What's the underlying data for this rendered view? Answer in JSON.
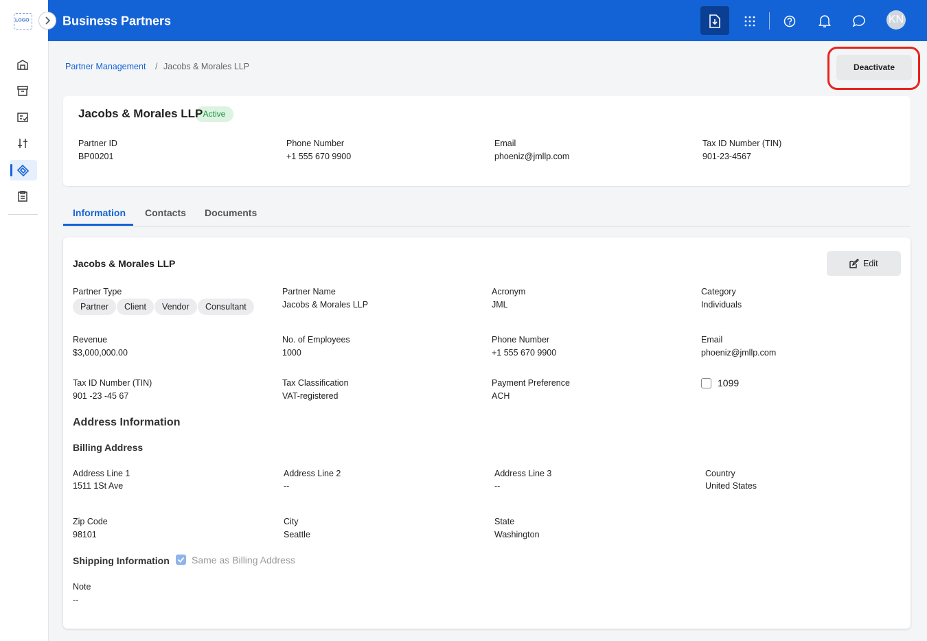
{
  "header": {
    "logo": "LOGO",
    "title": "Business Partners",
    "avatar": "KN"
  },
  "breadcrumb": {
    "parent": "Partner Management",
    "current": "Jacobs & Morales LLP"
  },
  "actions": {
    "deactivate": "Deactivate"
  },
  "summary": {
    "name": "Jacobs & Morales LLP",
    "status": "Active",
    "fields": [
      {
        "label": "Partner ID",
        "value": "BP00201"
      },
      {
        "label": "Phone Number",
        "value": "+1 555 670 9900"
      },
      {
        "label": "Email",
        "value": "phoeniz@jmllp.com"
      },
      {
        "label": "Tax ID Number (TIN)",
        "value": "901-23-4567"
      }
    ]
  },
  "tabs": [
    "Information",
    "Contacts",
    "Documents"
  ],
  "details": {
    "title": "Jacobs & Morales LLP",
    "edit": "Edit",
    "partner_type": {
      "label": "Partner Type",
      "chips": [
        "Partner",
        "Client",
        "Vendor",
        "Consultant"
      ]
    },
    "fields": [
      {
        "label": "Partner Name",
        "value": "Jacobs & Morales LLP"
      },
      {
        "label": "Acronym",
        "value": "JML"
      },
      {
        "label": "Category",
        "value": "Individuals"
      },
      {
        "label": "Revenue",
        "value": "$3,000,000.00"
      },
      {
        "label": "No. of Employees",
        "value": "1000"
      },
      {
        "label": "Phone Number",
        "value": "+1 555 670 9900"
      },
      {
        "label": "Email",
        "value": "phoeniz@jmllp.com"
      },
      {
        "label": "Tax ID Number (TIN)",
        "value": "901 -23 -45 67"
      },
      {
        "label": "Tax Classification",
        "value": "VAT-registered"
      },
      {
        "label": "Payment Preference",
        "value": "ACH"
      }
    ],
    "checkbox": "1099",
    "address_title": "Address Information",
    "billing_title": "Billing Address",
    "billing_fields": [
      {
        "label": "Address Line 1",
        "value": "1511 1St Ave"
      },
      {
        "label": "Address Line 2",
        "value": "--"
      },
      {
        "label": "Address Line 3",
        "value": "--"
      },
      {
        "label": "Country",
        "value": "United States"
      },
      {
        "label": "Zip Code",
        "value": "98101"
      },
      {
        "label": "City",
        "value": "Seattle"
      },
      {
        "label": "State",
        "value": "Washington"
      }
    ],
    "shipping": {
      "label": "Shipping Information",
      "checkbox": "Same as Billing Address"
    },
    "note": {
      "label": "Note",
      "value": "--"
    }
  }
}
